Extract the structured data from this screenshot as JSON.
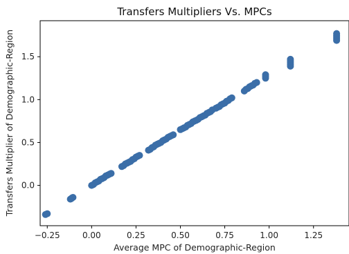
{
  "chart_data": {
    "type": "scatter",
    "title": "Transfers Multipliers Vs. MPCs",
    "xlabel": "Average MPC of Demographic-Region",
    "ylabel": "Transfers Multiplier of Demographic-Region",
    "xlim": [
      -0.29,
      1.45
    ],
    "ylim": [
      -0.47,
      1.92
    ],
    "xticks": [
      -0.25,
      0.0,
      0.25,
      0.5,
      0.75,
      1.0,
      1.25
    ],
    "xtick_labels": [
      "−0.25",
      "0.00",
      "0.25",
      "0.50",
      "0.75",
      "1.00",
      "1.25"
    ],
    "yticks": [
      0.0,
      0.5,
      1.0,
      1.5
    ],
    "ytick_labels": [
      "0.0",
      "0.5",
      "1.0",
      "1.5"
    ],
    "grid": false,
    "marker_color": "#3b6ea8",
    "series": [
      {
        "name": "",
        "points": [
          [
            -0.26,
            -0.34
          ],
          [
            -0.25,
            -0.33
          ],
          [
            -0.12,
            -0.16
          ],
          [
            -0.115,
            -0.155
          ],
          [
            -0.11,
            -0.145
          ],
          [
            -0.105,
            -0.14
          ],
          [
            0.0,
            0.0
          ],
          [
            0.01,
            0.01
          ],
          [
            0.02,
            0.03
          ],
          [
            0.03,
            0.04
          ],
          [
            0.04,
            0.05
          ],
          [
            0.05,
            0.07
          ],
          [
            0.06,
            0.08
          ],
          [
            0.07,
            0.09
          ],
          [
            0.08,
            0.11
          ],
          [
            0.09,
            0.12
          ],
          [
            0.1,
            0.13
          ],
          [
            0.11,
            0.14
          ],
          [
            0.17,
            0.22
          ],
          [
            0.18,
            0.23
          ],
          [
            0.19,
            0.25
          ],
          [
            0.2,
            0.26
          ],
          [
            0.21,
            0.27
          ],
          [
            0.22,
            0.28
          ],
          [
            0.23,
            0.3
          ],
          [
            0.24,
            0.31
          ],
          [
            0.25,
            0.33
          ],
          [
            0.26,
            0.34
          ],
          [
            0.27,
            0.35
          ],
          [
            0.32,
            0.41
          ],
          [
            0.33,
            0.42
          ],
          [
            0.34,
            0.44
          ],
          [
            0.35,
            0.45
          ],
          [
            0.36,
            0.47
          ],
          [
            0.37,
            0.48
          ],
          [
            0.38,
            0.49
          ],
          [
            0.39,
            0.5
          ],
          [
            0.4,
            0.52
          ],
          [
            0.41,
            0.53
          ],
          [
            0.42,
            0.54
          ],
          [
            0.43,
            0.56
          ],
          [
            0.44,
            0.57
          ],
          [
            0.45,
            0.58
          ],
          [
            0.46,
            0.59
          ],
          [
            0.5,
            0.65
          ],
          [
            0.51,
            0.66
          ],
          [
            0.52,
            0.67
          ],
          [
            0.53,
            0.68
          ],
          [
            0.54,
            0.7
          ],
          [
            0.55,
            0.71
          ],
          [
            0.56,
            0.72
          ],
          [
            0.57,
            0.74
          ],
          [
            0.58,
            0.75
          ],
          [
            0.59,
            0.76
          ],
          [
            0.6,
            0.77
          ],
          [
            0.61,
            0.79
          ],
          [
            0.62,
            0.8
          ],
          [
            0.63,
            0.81
          ],
          [
            0.64,
            0.82
          ],
          [
            0.65,
            0.84
          ],
          [
            0.66,
            0.85
          ],
          [
            0.67,
            0.86
          ],
          [
            0.68,
            0.88
          ],
          [
            0.7,
            0.9
          ],
          [
            0.71,
            0.91
          ],
          [
            0.72,
            0.92
          ],
          [
            0.73,
            0.94
          ],
          [
            0.74,
            0.95
          ],
          [
            0.75,
            0.96
          ],
          [
            0.76,
            0.98
          ],
          [
            0.77,
            0.99
          ],
          [
            0.78,
            1.01
          ],
          [
            0.79,
            1.02
          ],
          [
            0.86,
            1.1
          ],
          [
            0.87,
            1.12
          ],
          [
            0.88,
            1.13
          ],
          [
            0.89,
            1.15
          ],
          [
            0.9,
            1.16
          ],
          [
            0.91,
            1.17
          ],
          [
            0.92,
            1.19
          ],
          [
            0.93,
            1.2
          ],
          [
            0.98,
            1.25
          ],
          [
            0.98,
            1.27
          ],
          [
            0.98,
            1.29
          ],
          [
            1.12,
            1.39
          ],
          [
            1.12,
            1.41
          ],
          [
            1.12,
            1.43
          ],
          [
            1.12,
            1.45
          ],
          [
            1.12,
            1.47
          ],
          [
            1.38,
            1.69
          ],
          [
            1.38,
            1.71
          ],
          [
            1.38,
            1.73
          ],
          [
            1.38,
            1.75
          ],
          [
            1.38,
            1.77
          ]
        ]
      }
    ]
  }
}
